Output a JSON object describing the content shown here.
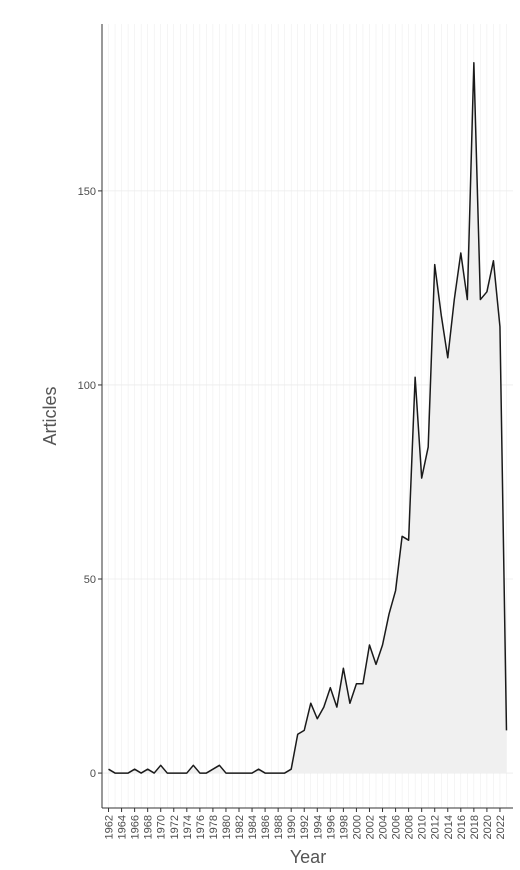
{
  "chart_data": {
    "type": "area",
    "title": "",
    "xlabel": "Year",
    "ylabel": "Articles",
    "xlim": [
      1961,
      2024
    ],
    "ylim": [
      -9,
      193
    ],
    "yticks": [
      0,
      50,
      100,
      150
    ],
    "xticks": [
      1962,
      1964,
      1966,
      1968,
      1970,
      1972,
      1974,
      1976,
      1978,
      1980,
      1982,
      1984,
      1986,
      1988,
      1990,
      1992,
      1994,
      1996,
      1998,
      2000,
      2002,
      2004,
      2006,
      2008,
      2010,
      2012,
      2014,
      2016,
      2018,
      2020,
      2022
    ],
    "grid": true,
    "x": [
      1962,
      1963,
      1964,
      1965,
      1966,
      1967,
      1968,
      1969,
      1970,
      1971,
      1972,
      1973,
      1974,
      1975,
      1976,
      1977,
      1978,
      1979,
      1980,
      1981,
      1982,
      1983,
      1984,
      1985,
      1986,
      1987,
      1988,
      1989,
      1990,
      1991,
      1992,
      1993,
      1994,
      1995,
      1996,
      1997,
      1998,
      1999,
      2000,
      2001,
      2002,
      2003,
      2004,
      2005,
      2006,
      2007,
      2008,
      2009,
      2010,
      2011,
      2012,
      2013,
      2014,
      2015,
      2016,
      2017,
      2018,
      2019,
      2020,
      2021,
      2022,
      2023
    ],
    "values": [
      1,
      0,
      0,
      0,
      1,
      0,
      1,
      0,
      2,
      0,
      0,
      0,
      0,
      2,
      0,
      0,
      1,
      2,
      0,
      0,
      0,
      0,
      0,
      1,
      0,
      0,
      0,
      0,
      1,
      10,
      11,
      18,
      14,
      17,
      22,
      17,
      27,
      18,
      23,
      23,
      33,
      28,
      33,
      41,
      47,
      61,
      60,
      102,
      76,
      84,
      131,
      118,
      107,
      122,
      134,
      122,
      183,
      122,
      124,
      132,
      115,
      11
    ],
    "colors": {
      "line": "#1a1a1a",
      "fill": "#f0f0f0",
      "grid": "#ebebeb",
      "axis": "#333333"
    }
  }
}
